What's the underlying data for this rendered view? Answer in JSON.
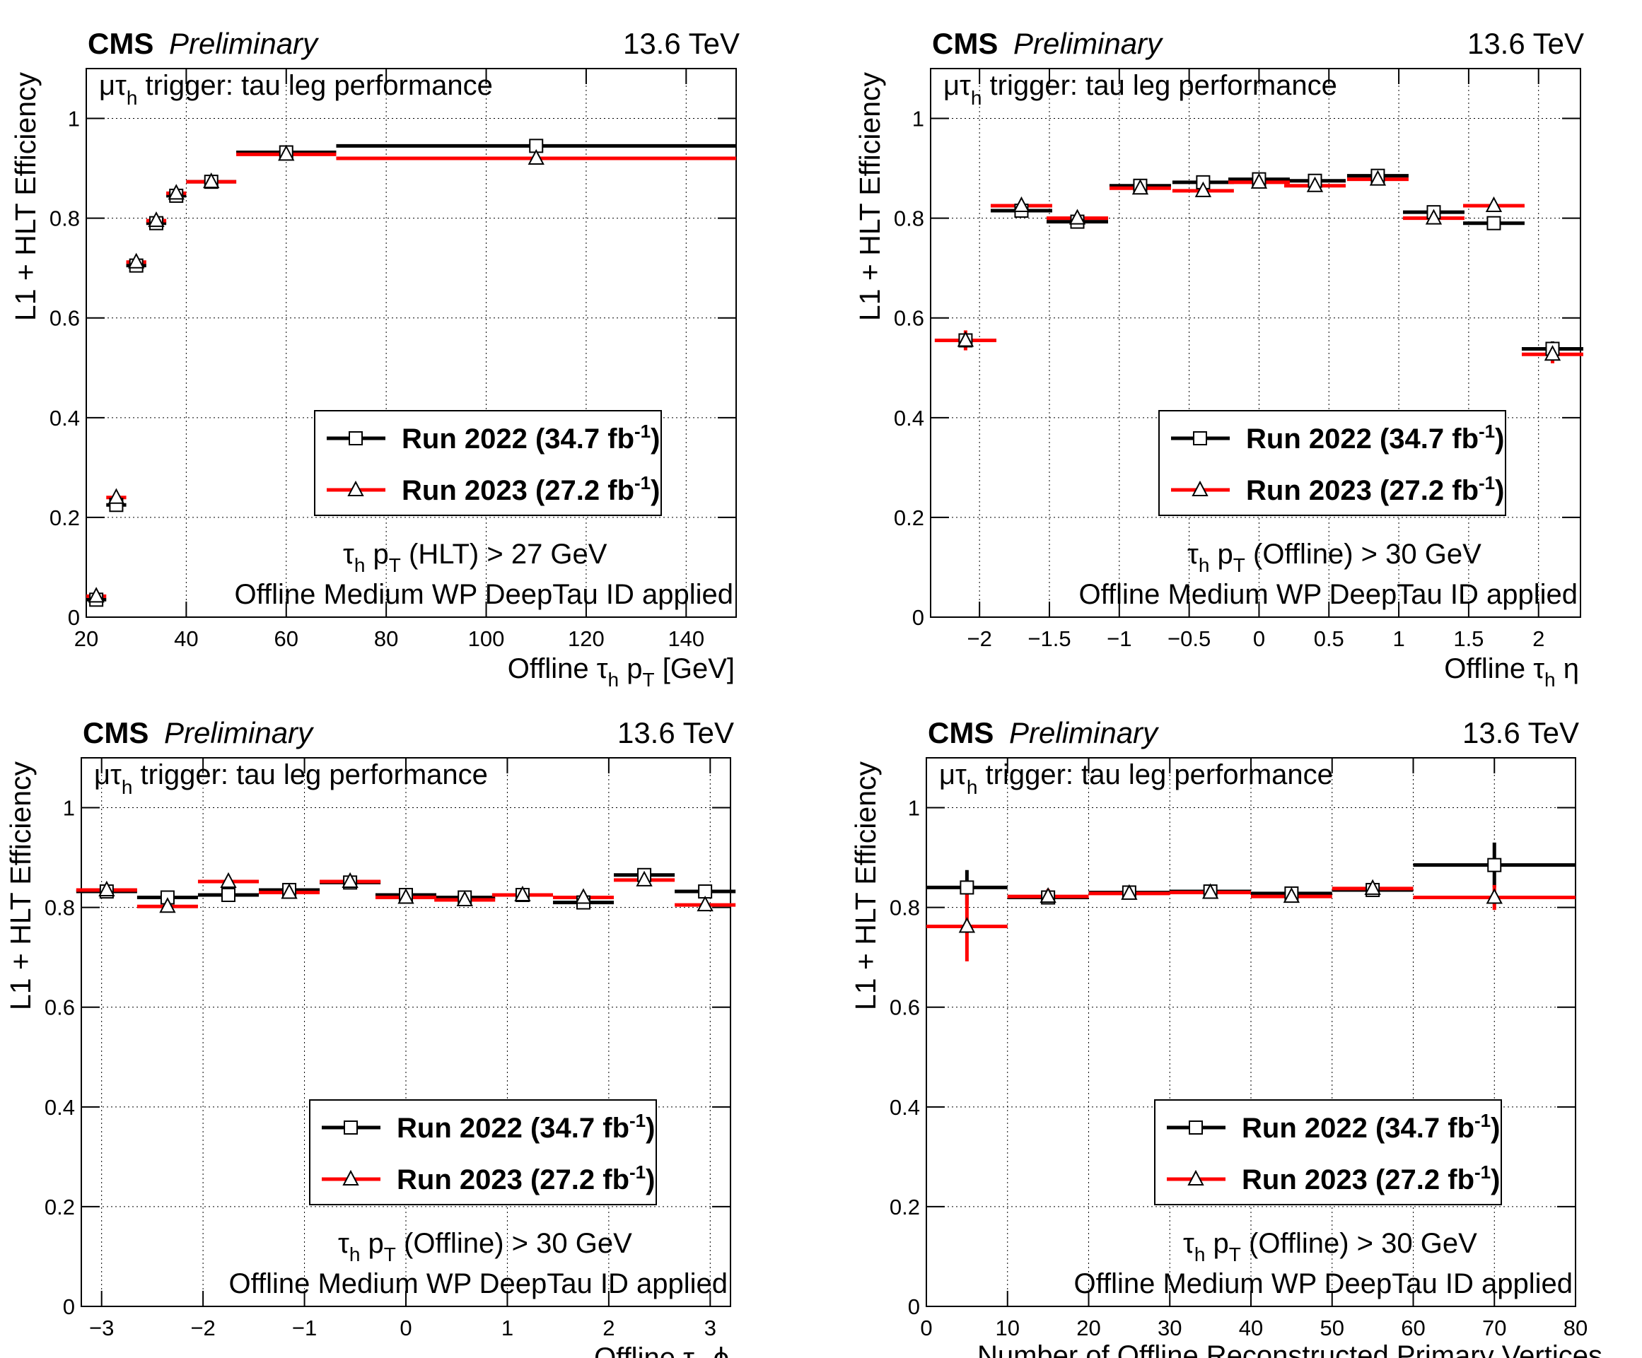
{
  "labels": {
    "experiment": "CMS",
    "status": "Preliminary",
    "energy": "13.6 TeV",
    "y_axis": "L1 + HLT Efficiency",
    "channel_mu": "μτ",
    "channel_sub": "h",
    "channel_rest": " trigger: tau leg performance",
    "tau": "τ",
    "sub_h": "h",
    "pt_p": "p",
    "pt_T": "T",
    "cut_hlt": "(HLT) > 27 GeV",
    "cut_offline": "(Offline) > 30 GeV",
    "id_note": "Offline Medium WP DeepTau ID applied",
    "offline": "Offline",
    "gev_unit": "[GeV]",
    "eta": "η",
    "phi": "ϕ",
    "npv_title": "Number of Offline Reconstructed Primary Vertices"
  },
  "legend": [
    {
      "name": "Run 2022",
      "lumi": "34.7 fb",
      "exp": "-1",
      "marker": "square",
      "color": "#000000"
    },
    {
      "name": "Run 2023",
      "lumi": "27.2 fb",
      "exp": "-1",
      "marker": "triangle",
      "color": "#ff0000"
    }
  ],
  "colors": {
    "run2022": "#000000",
    "run2023": "#ff0000"
  },
  "chart_data": [
    {
      "type": "scatter",
      "title": "μτh trigger: tau leg performance",
      "xlabel": "Offline τh pT [GeV]",
      "ylabel": "L1 + HLT Efficiency",
      "cut": "τh pT (HLT) > 27 GeV",
      "xlim": [
        20,
        150
      ],
      "ylim": [
        0,
        1.1
      ],
      "xticks": [
        20,
        40,
        60,
        80,
        100,
        120,
        140
      ],
      "xtick_labels": [
        "20",
        "40",
        "60",
        "80",
        "100",
        "120",
        "140"
      ],
      "yticks": [
        0,
        0.2,
        0.4,
        0.6,
        0.8,
        1
      ],
      "ytick_labels": [
        "0",
        "0.2",
        "0.4",
        "0.6",
        "0.8",
        "1"
      ],
      "grid": true,
      "legend_position": "lower-right",
      "series": [
        {
          "name": "Run 2022 (34.7 fb-1)",
          "x": [
            22,
            26,
            30,
            34,
            38,
            45,
            60,
            110
          ],
          "xerr": [
            2,
            2,
            2,
            2,
            2,
            5,
            10,
            40
          ],
          "y": [
            0.035,
            0.225,
            0.705,
            0.79,
            0.845,
            0.873,
            0.932,
            0.945
          ],
          "yerr": [
            0.005,
            0.01,
            0.008,
            0.006,
            0.006,
            0.005,
            0.004,
            0.005
          ]
        },
        {
          "name": "Run 2023 (27.2 fb-1)",
          "x": [
            22,
            26,
            30,
            34,
            38,
            45,
            60,
            110
          ],
          "xerr": [
            2,
            2,
            2,
            2,
            2,
            5,
            10,
            40
          ],
          "y": [
            0.042,
            0.24,
            0.712,
            0.795,
            0.85,
            0.873,
            0.928,
            0.92
          ],
          "yerr": [
            0.005,
            0.01,
            0.008,
            0.006,
            0.006,
            0.005,
            0.004,
            0.005
          ]
        }
      ]
    },
    {
      "type": "scatter",
      "title": "μτh trigger: tau leg performance",
      "xlabel": "Offline τh η",
      "ylabel": "L1 + HLT Efficiency",
      "cut": "τh pT (Offline) > 30 GeV",
      "xlim": [
        -2.35,
        2.3
      ],
      "ylim": [
        0,
        1.1
      ],
      "xticks": [
        -2,
        -1.5,
        -1,
        -0.5,
        0,
        0.5,
        1,
        1.5,
        2
      ],
      "xtick_labels": [
        "−2",
        "−1.5",
        "−1",
        "−0.5",
        "0",
        "0.5",
        "1",
        "1.5",
        "2"
      ],
      "yticks": [
        0,
        0.2,
        0.4,
        0.6,
        0.8,
        1
      ],
      "ytick_labels": [
        "0",
        "0.2",
        "0.4",
        "0.6",
        "0.8",
        "1"
      ],
      "grid": true,
      "legend_position": "lower-right",
      "series": [
        {
          "name": "Run 2022 (34.7 fb-1)",
          "x": [
            -2.1,
            -1.7,
            -1.3,
            -0.85,
            -0.4,
            0,
            0.4,
            0.85,
            1.25,
            1.68,
            2.1
          ],
          "xerr": [
            0.22,
            0.22,
            0.22,
            0.22,
            0.22,
            0.22,
            0.22,
            0.22,
            0.22,
            0.22,
            0.22
          ],
          "y": [
            0.555,
            0.815,
            0.793,
            0.865,
            0.872,
            0.878,
            0.875,
            0.885,
            0.812,
            0.79,
            0.538
          ],
          "yerr": [
            0.015,
            0.006,
            0.006,
            0.005,
            0.005,
            0.005,
            0.005,
            0.005,
            0.006,
            0.006,
            0.015
          ]
        },
        {
          "name": "Run 2023 (27.2 fb-1)",
          "x": [
            -2.1,
            -1.7,
            -1.3,
            -0.85,
            -0.4,
            0,
            0.4,
            0.85,
            1.25,
            1.68,
            2.1
          ],
          "xerr": [
            0.22,
            0.22,
            0.22,
            0.22,
            0.22,
            0.22,
            0.22,
            0.22,
            0.22,
            0.22,
            0.22
          ],
          "y": [
            0.555,
            0.825,
            0.8,
            0.86,
            0.855,
            0.872,
            0.865,
            0.878,
            0.8,
            0.825,
            0.527
          ],
          "yerr": [
            0.02,
            0.006,
            0.006,
            0.005,
            0.005,
            0.005,
            0.005,
            0.005,
            0.006,
            0.006,
            0.018
          ]
        }
      ]
    },
    {
      "type": "scatter",
      "title": "μτh trigger: tau leg performance",
      "xlabel": "Offline τh ϕ",
      "ylabel": "L1 + HLT Efficiency",
      "cut": "τh pT (Offline) > 30 GeV",
      "xlim": [
        -3.2,
        3.2
      ],
      "ylim": [
        0,
        1.1
      ],
      "xticks": [
        -3,
        -2,
        -1,
        0,
        1,
        2,
        3
      ],
      "xtick_labels": [
        "−3",
        "−2",
        "−1",
        "0",
        "1",
        "2",
        "3"
      ],
      "yticks": [
        0,
        0.2,
        0.4,
        0.6,
        0.8,
        1
      ],
      "ytick_labels": [
        "0",
        "0.2",
        "0.4",
        "0.6",
        "0.8",
        "1"
      ],
      "grid": true,
      "legend_position": "lower-right",
      "series": [
        {
          "name": "Run 2022 (34.7 fb-1)",
          "x": [
            -2.95,
            -2.35,
            -1.75,
            -1.15,
            -0.55,
            0,
            0.58,
            1.15,
            1.75,
            2.35,
            2.95
          ],
          "xerr": [
            0.3,
            0.3,
            0.3,
            0.3,
            0.3,
            0.3,
            0.3,
            0.3,
            0.3,
            0.3,
            0.3
          ],
          "y": [
            0.832,
            0.82,
            0.825,
            0.835,
            0.85,
            0.825,
            0.82,
            0.825,
            0.81,
            0.865,
            0.832
          ],
          "yerr": [
            0.005,
            0.005,
            0.005,
            0.005,
            0.005,
            0.005,
            0.005,
            0.005,
            0.005,
            0.005,
            0.005
          ]
        },
        {
          "name": "Run 2023 (27.2 fb-1)",
          "x": [
            -2.95,
            -2.35,
            -1.75,
            -1.15,
            -0.55,
            0,
            0.58,
            1.15,
            1.75,
            2.35,
            2.95
          ],
          "xerr": [
            0.3,
            0.3,
            0.3,
            0.3,
            0.3,
            0.3,
            0.3,
            0.3,
            0.3,
            0.3,
            0.3
          ],
          "y": [
            0.835,
            0.802,
            0.852,
            0.83,
            0.852,
            0.82,
            0.815,
            0.825,
            0.82,
            0.855,
            0.805
          ],
          "yerr": [
            0.005,
            0.005,
            0.005,
            0.005,
            0.005,
            0.005,
            0.005,
            0.005,
            0.005,
            0.005,
            0.005
          ]
        }
      ]
    },
    {
      "type": "scatter",
      "title": "μτh trigger: tau leg performance",
      "xlabel": "Number of Offline Reconstructed Primary Vertices",
      "ylabel": "L1 + HLT Efficiency",
      "cut": "τh pT (Offline) > 30 GeV",
      "xlim": [
        0,
        80
      ],
      "ylim": [
        0,
        1.1
      ],
      "xticks": [
        0,
        10,
        20,
        30,
        40,
        50,
        60,
        70,
        80
      ],
      "xtick_labels": [
        "0",
        "10",
        "20",
        "30",
        "40",
        "50",
        "60",
        "70",
        "80"
      ],
      "yticks": [
        0,
        0.2,
        0.4,
        0.6,
        0.8,
        1
      ],
      "ytick_labels": [
        "0",
        "0.2",
        "0.4",
        "0.6",
        "0.8",
        "1"
      ],
      "grid": true,
      "legend_position": "lower-right",
      "series": [
        {
          "name": "Run 2022 (34.7 fb-1)",
          "x": [
            5,
            15,
            25,
            35,
            45,
            55,
            70
          ],
          "xerr": [
            5,
            5,
            5,
            5,
            5,
            5,
            10
          ],
          "y": [
            0.84,
            0.82,
            0.83,
            0.832,
            0.828,
            0.835,
            0.885
          ],
          "yerr": [
            0.035,
            0.01,
            0.006,
            0.006,
            0.006,
            0.01,
            0.045
          ]
        },
        {
          "name": "Run 2023 (27.2 fb-1)",
          "x": [
            5,
            15,
            25,
            35,
            45,
            55,
            70
          ],
          "xerr": [
            5,
            5,
            5,
            5,
            5,
            5,
            10
          ],
          "y": [
            0.762,
            0.822,
            0.828,
            0.83,
            0.822,
            0.838,
            0.82
          ],
          "yerr": [
            0.07,
            0.015,
            0.006,
            0.006,
            0.006,
            0.01,
            0.025
          ]
        }
      ]
    }
  ]
}
